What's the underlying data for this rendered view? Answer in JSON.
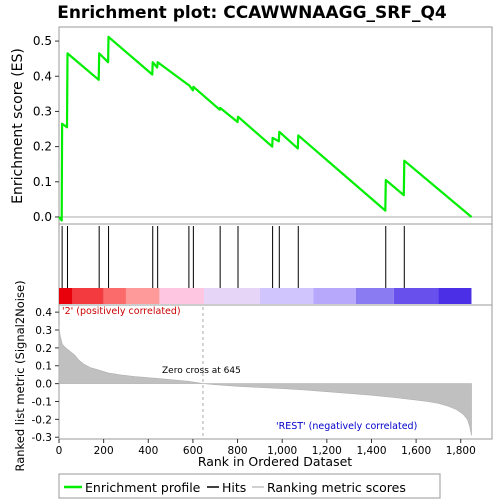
{
  "chart_data": [
    {
      "panel": "enrichment",
      "type": "line",
      "title": "Enrichment plot: CCAWWNAAGG_SRF_Q4",
      "ylabel": "Enrichment score (ES)",
      "ylim": [
        -0.02,
        0.54
      ],
      "yticks": [
        0.0,
        0.1,
        0.2,
        0.3,
        0.4,
        0.5
      ],
      "ytick_labels": [
        "0.0",
        "0.1",
        "0.2",
        "0.3",
        "0.4",
        "0.5"
      ],
      "xlim": [
        0,
        1940
      ],
      "line_color": "#00ee00",
      "series": [
        {
          "name": "Enrichment profile",
          "x": [
            0,
            12,
            14,
            36,
            38,
            178,
            180,
            220,
            222,
            418,
            420,
            440,
            442,
            580,
            582,
            600,
            602,
            720,
            722,
            800,
            802,
            955,
            957,
            985,
            987,
            1070,
            1072,
            1462,
            1464,
            1545,
            1547,
            1848
          ],
          "y": [
            0.0,
            -0.01,
            0.265,
            0.255,
            0.465,
            0.39,
            0.465,
            0.44,
            0.512,
            0.405,
            0.44,
            0.425,
            0.44,
            0.375,
            0.375,
            0.36,
            0.37,
            0.305,
            0.31,
            0.27,
            0.285,
            0.2,
            0.225,
            0.215,
            0.242,
            0.195,
            0.232,
            0.018,
            0.105,
            0.062,
            0.16,
            0.0
          ]
        }
      ]
    },
    {
      "panel": "hits",
      "type": "scatter",
      "series": [
        {
          "name": "Hits",
          "x": [
            14,
            38,
            180,
            222,
            420,
            442,
            582,
            602,
            722,
            802,
            957,
            987,
            1072,
            1464,
            1547
          ]
        }
      ],
      "color_bar": {
        "colors": [
          "#e8000b",
          "#f23a3f",
          "#fb6b6b",
          "#ff9a9a",
          "#ffc6e2",
          "#e6d5f7",
          "#d0c6fd",
          "#b8a8fb",
          "#8b7bf2",
          "#6750ec",
          "#4a2fe6",
          "#2000cc"
        ],
        "breaks": [
          0,
          60,
          200,
          300,
          450,
          650,
          900,
          1140,
          1330,
          1500,
          1700,
          1848
        ]
      }
    },
    {
      "panel": "ranked_list",
      "type": "area",
      "ylabel": "Ranked list metric (Signal2Noise)",
      "xlabel": "Rank in Ordered Dataset",
      "ylim": [
        -0.31,
        0.44
      ],
      "yticks": [
        -0.3,
        -0.2,
        -0.1,
        0.0,
        0.1,
        0.2,
        0.3,
        0.4
      ],
      "ytick_labels": [
        "-0.3",
        "-0.2",
        "-0.1",
        "0.0",
        "0.1",
        "0.2",
        "0.3",
        "0.4"
      ],
      "xlim": [
        0,
        1940
      ],
      "xticks": [
        0,
        200,
        400,
        600,
        800,
        1000,
        1200,
        1400,
        1600,
        1800
      ],
      "xtick_labels": [
        "0",
        "200",
        "400",
        "600",
        "800",
        "1,000",
        "1,200",
        "1,400",
        "1,600",
        "1,800"
      ],
      "fill_color": "#c0c0c0",
      "x": [
        0,
        5,
        15,
        30,
        50,
        70,
        90,
        110,
        140,
        180,
        220,
        280,
        340,
        400,
        460,
        520,
        580,
        645,
        700,
        800,
        900,
        1000,
        1100,
        1200,
        1300,
        1400,
        1500,
        1600,
        1650,
        1700,
        1740,
        1780,
        1810,
        1830,
        1840,
        1848
      ],
      "y": [
        0.32,
        0.27,
        0.22,
        0.2,
        0.18,
        0.16,
        0.13,
        0.11,
        0.09,
        0.075,
        0.06,
        0.048,
        0.04,
        0.033,
        0.027,
        0.02,
        0.013,
        0.0,
        -0.006,
        -0.015,
        -0.022,
        -0.028,
        -0.036,
        -0.045,
        -0.055,
        -0.065,
        -0.078,
        -0.092,
        -0.1,
        -0.11,
        -0.125,
        -0.145,
        -0.17,
        -0.2,
        -0.24,
        -0.29
      ],
      "annotations": {
        "positive": "'2' (positively correlated)",
        "negative": "'REST' (negatively correlated)",
        "zero_cross": "Zero cross at 645",
        "zero_cross_x": 645
      }
    }
  ],
  "legend": {
    "items": [
      {
        "label": "Enrichment profile",
        "color": "#00ee00"
      },
      {
        "label": "Hits",
        "color": "#000000"
      },
      {
        "label": "Ranking metric scores",
        "color": "#c0c0c0"
      }
    ]
  }
}
